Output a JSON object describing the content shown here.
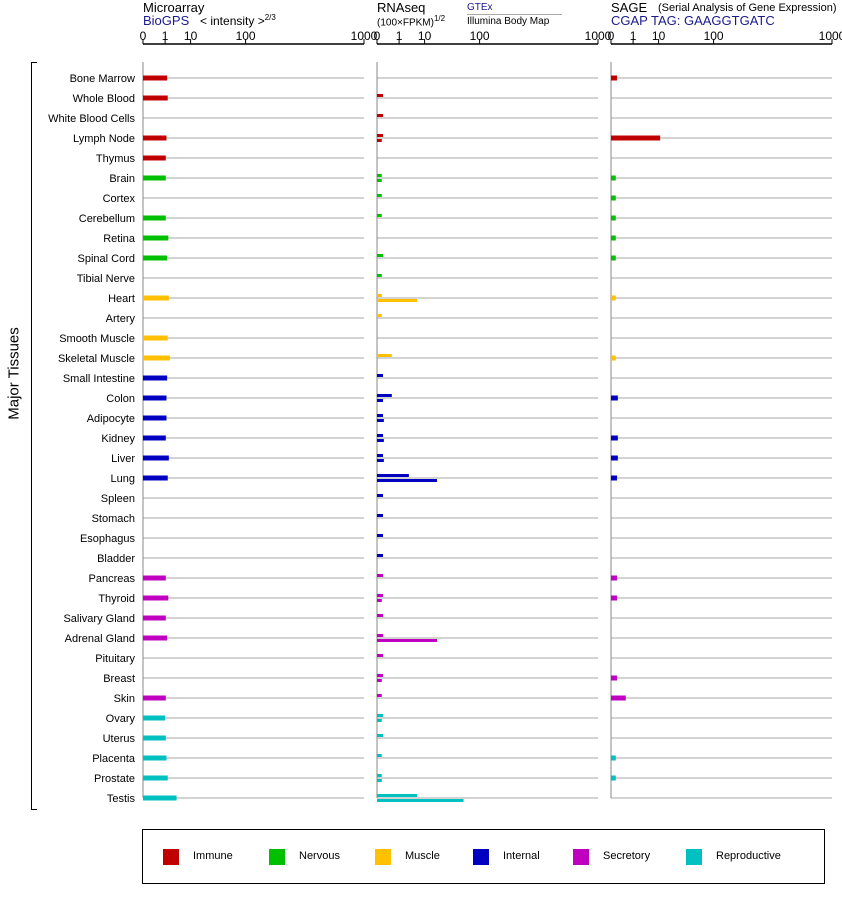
{
  "side_label": "Major Tissues",
  "panels": [
    {
      "key": "microarray",
      "title": "Microarray",
      "subtitle": "< intensity >",
      "superscript": "2/3",
      "source": "BioGPS",
      "ticks": [
        "0",
        "1",
        "10",
        "100",
        "1000"
      ]
    },
    {
      "key": "rnaseq",
      "title": "RNAseq",
      "subtitle": "(100×FPKM)",
      "superscript": "1/2",
      "source_top": "GTEx",
      "source_bottom": "Illumina Body Map",
      "ticks": [
        "0",
        "1",
        "10",
        "100",
        "1000"
      ]
    },
    {
      "key": "sage",
      "title": "SAGE",
      "subtitle": "(Serial Analysis of Gene Expression)",
      "source": "CGAP",
      "tag": "TAG: GAAGGTGATC",
      "ticks": [
        "0",
        "1",
        "10",
        "100",
        "1000"
      ]
    }
  ],
  "colors": {
    "Immune": "#c00000",
    "Nervous": "#00c000",
    "Muscle": "#ffc000",
    "Internal": "#0000c0",
    "Secretory": "#c000c0",
    "Reproductive": "#00c0c0"
  },
  "legend": [
    "Immune",
    "Nervous",
    "Muscle",
    "Internal",
    "Secretory",
    "Reproductive"
  ],
  "chart_data": {
    "type": "bar",
    "scale": "power (tick labels 0, 1, 10, 100, 1000)",
    "categories": [
      "Bone Marrow",
      "Whole Blood",
      "White Blood Cells",
      "Lymph Node",
      "Thymus",
      "Brain",
      "Cortex",
      "Cerebellum",
      "Retina",
      "Spinal Cord",
      "Tibial Nerve",
      "Heart",
      "Artery",
      "Smooth Muscle",
      "Skeletal Muscle",
      "Small Intestine",
      "Colon",
      "Adipocyte",
      "Kidney",
      "Liver",
      "Lung",
      "Spleen",
      "Stomach",
      "Esophagus",
      "Bladder",
      "Pancreas",
      "Thyroid",
      "Salivary Gland",
      "Adrenal Gland",
      "Pituitary",
      "Breast",
      "Skin",
      "Ovary",
      "Uterus",
      "Placenta",
      "Prostate",
      "Testis"
    ],
    "groups": [
      "Immune",
      "Immune",
      "Immune",
      "Immune",
      "Immune",
      "Nervous",
      "Nervous",
      "Nervous",
      "Nervous",
      "Nervous",
      "Nervous",
      "Muscle",
      "Muscle",
      "Muscle",
      "Muscle",
      "Internal",
      "Internal",
      "Internal",
      "Internal",
      "Internal",
      "Internal",
      "Internal",
      "Internal",
      "Internal",
      "Internal",
      "Secretory",
      "Secretory",
      "Secretory",
      "Secretory",
      "Secretory",
      "Secretory",
      "Secretory",
      "Reproductive",
      "Reproductive",
      "Reproductive",
      "Reproductive",
      "Reproductive"
    ],
    "microarray": [
      1.3,
      1.4,
      null,
      1.2,
      1.1,
      1.1,
      null,
      1.1,
      1.5,
      1.3,
      null,
      1.6,
      null,
      1.4,
      1.8,
      1.3,
      1.2,
      1.2,
      1.1,
      1.6,
      1.4,
      null,
      null,
      null,
      null,
      1.1,
      1.5,
      1.1,
      1.3,
      null,
      null,
      1.1,
      1.0,
      1.1,
      1.2,
      1.4,
      3.5
    ],
    "rnaseq_gtex": [
      null,
      0.02,
      0.02,
      0.02,
      null,
      0.01,
      0.01,
      0.01,
      null,
      0.02,
      0.01,
      0.01,
      0.01,
      null,
      0.3,
      0.02,
      0.3,
      0.02,
      0.02,
      0.02,
      3.0,
      0.02,
      0.02,
      0.02,
      0.02,
      0.02,
      0.02,
      0.02,
      0.02,
      0.02,
      0.02,
      0.01,
      0.02,
      0.02,
      0.01,
      0.01,
      6.0
    ],
    "rnaseq_ibm": [
      null,
      null,
      null,
      0.01,
      null,
      0.01,
      null,
      null,
      null,
      null,
      null,
      6.0,
      null,
      null,
      null,
      null,
      0.02,
      0.03,
      0.03,
      0.03,
      20,
      null,
      null,
      null,
      null,
      null,
      0.01,
      null,
      20,
      null,
      0.01,
      null,
      0.01,
      null,
      null,
      0.01,
      60
    ],
    "sage": [
      0.02,
      null,
      null,
      11,
      null,
      0.01,
      0.01,
      0.01,
      0.01,
      0.01,
      null,
      0.01,
      null,
      null,
      0.01,
      null,
      0.03,
      null,
      0.03,
      0.03,
      0.02,
      null,
      null,
      null,
      null,
      0.02,
      0.02,
      null,
      null,
      null,
      0.02,
      0.3,
      null,
      null,
      0.01,
      0.01,
      null
    ]
  }
}
